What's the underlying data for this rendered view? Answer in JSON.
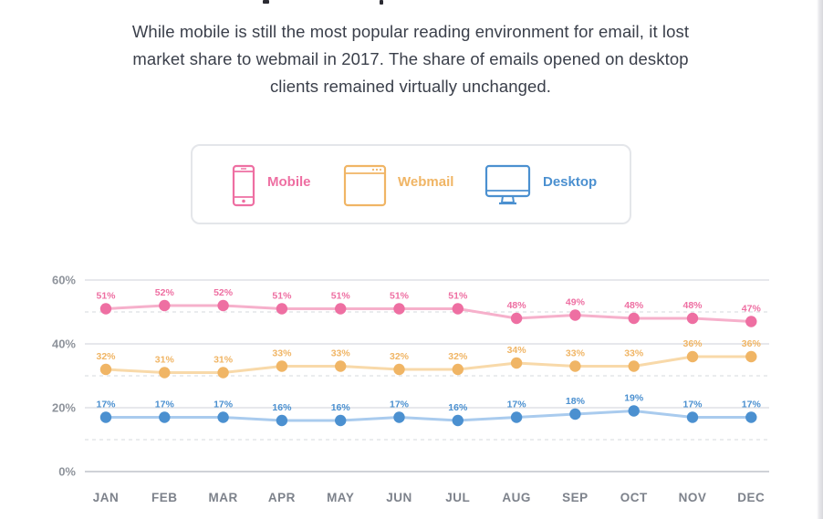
{
  "intro": {
    "line1": "While mobile is still the most popular reading environment for email, it lost",
    "line2": "market share to webmail in 2017. The share of emails opened on desktop",
    "line3": "clients remained virtually unchanged."
  },
  "legend": {
    "mobile": {
      "label": "Mobile",
      "icon": "smartphone-icon",
      "color": "#ee6fa2"
    },
    "webmail": {
      "label": "Webmail",
      "icon": "browser-window-icon",
      "color": "#f0b565"
    },
    "desktop": {
      "label": "Desktop",
      "icon": "monitor-icon",
      "color": "#4b90d0"
    }
  },
  "chart_data": {
    "type": "line",
    "categories": [
      "JAN",
      "FEB",
      "MAR",
      "APR",
      "MAY",
      "JUN",
      "JUL",
      "AUG",
      "SEP",
      "OCT",
      "NOV",
      "DEC"
    ],
    "y_ticks": [
      "0%",
      "20%",
      "40%",
      "60%"
    ],
    "ylim": [
      0,
      60
    ],
    "grid": true,
    "series": [
      {
        "name": "Mobile",
        "values": [
          51,
          52,
          52,
          51,
          51,
          51,
          51,
          48,
          49,
          48,
          48,
          47
        ],
        "labels": [
          "51%",
          "52%",
          "52%",
          "51%",
          "51%",
          "51%",
          "51%",
          "48%",
          "49%",
          "48%",
          "48%",
          "47%"
        ],
        "color": "#ee6fa2",
        "line_color": "#f6b0cb"
      },
      {
        "name": "Webmail",
        "values": [
          32,
          31,
          31,
          33,
          33,
          32,
          32,
          34,
          33,
          33,
          36,
          36
        ],
        "labels": [
          "32%",
          "31%",
          "31%",
          "33%",
          "33%",
          "32%",
          "32%",
          "34%",
          "33%",
          "33%",
          "36%",
          "36%"
        ],
        "color": "#f0b565",
        "line_color": "#f8d9a9"
      },
      {
        "name": "Desktop",
        "values": [
          17,
          17,
          17,
          16,
          16,
          17,
          16,
          17,
          18,
          19,
          17,
          17
        ],
        "labels": [
          "17%",
          "17%",
          "17%",
          "16%",
          "16%",
          "17%",
          "16%",
          "17%",
          "18%",
          "19%",
          "17%",
          "17%"
        ],
        "color": "#4b90d0",
        "line_color": "#a9cbee"
      }
    ]
  }
}
